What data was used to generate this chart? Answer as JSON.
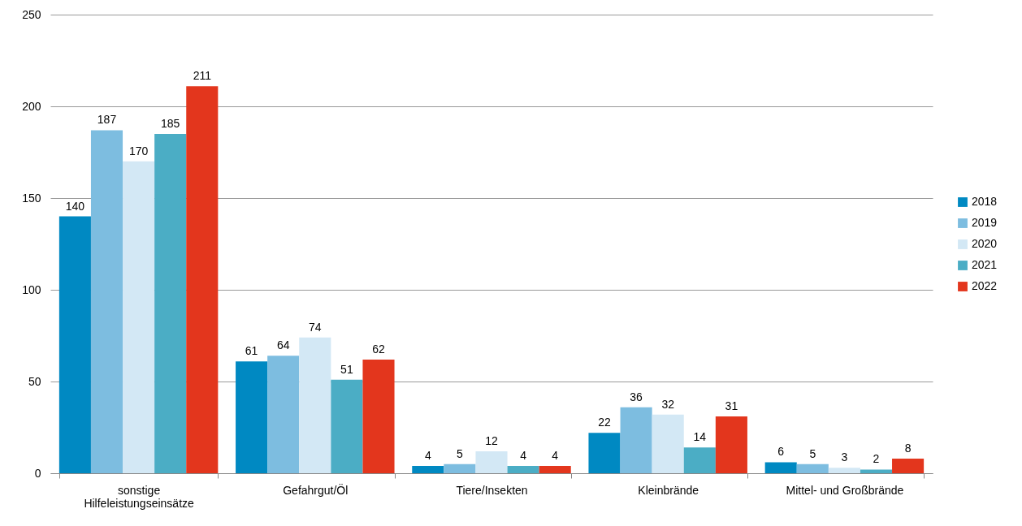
{
  "chart_data": {
    "type": "bar",
    "categories": [
      "sonstige Hilfeleistungseinsätze",
      "Gefahrgut/Öl",
      "Tiere/Insekten",
      "Kleinbrände",
      "Mittel- und Großbrände"
    ],
    "series": [
      {
        "name": "2018",
        "color": "#0089c2",
        "values": [
          140,
          61,
          4,
          22,
          6
        ]
      },
      {
        "name": "2019",
        "color": "#7dbde0",
        "values": [
          187,
          64,
          5,
          36,
          5
        ]
      },
      {
        "name": "2020",
        "color": "#d3e8f5",
        "values": [
          170,
          74,
          12,
          32,
          3
        ]
      },
      {
        "name": "2021",
        "color": "#4badc5",
        "values": [
          185,
          51,
          4,
          14,
          2
        ]
      },
      {
        "name": "2022",
        "color": "#e3361d",
        "values": [
          211,
          62,
          4,
          31,
          8
        ]
      }
    ],
    "ylim": [
      0,
      250
    ],
    "yticks": [
      0,
      50,
      100,
      150,
      200,
      250
    ],
    "grid": "y",
    "legend": "right",
    "data_labels": true
  }
}
